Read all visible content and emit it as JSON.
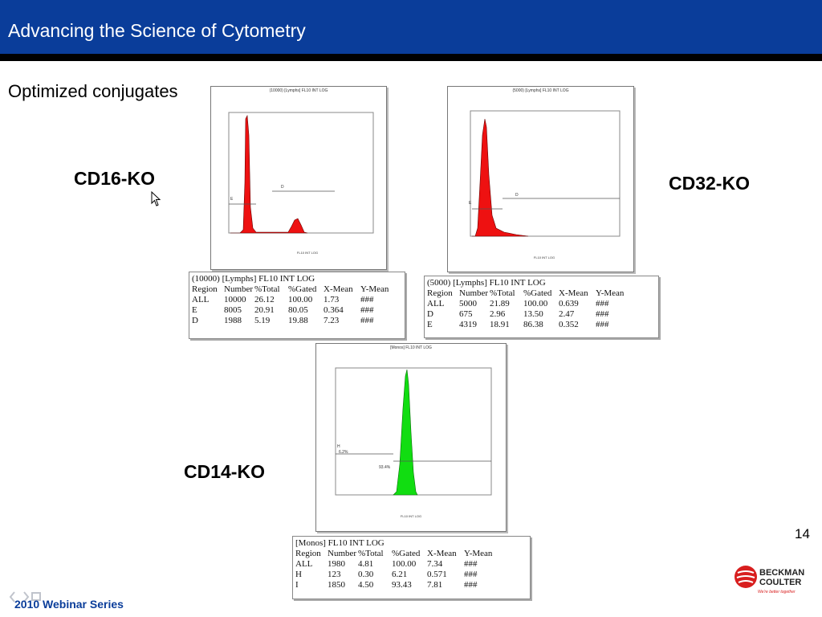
{
  "header": {
    "title": "Advancing the Science of Cytometry"
  },
  "slide": {
    "subtitle": "Optimized conjugates",
    "page_number": "14",
    "footer": "2010 Webinar Series",
    "logo": {
      "line1": "BECKMAN",
      "line2": "COULTER",
      "tagline": "We're better together"
    }
  },
  "panels": [
    {
      "label": "CD16-KO",
      "plot_title": "(10000) [Lymphs] FL10 INT LOG",
      "x_label": "FL10 INT LOG",
      "fill_color": "#ee1111",
      "region_labels": [
        "E",
        "D"
      ],
      "stats_title": "(10000) [Lymphs] FL10 INT LOG",
      "stats_headers": [
        "Region",
        "Number",
        "%Total",
        "%Gated",
        "X-Mean",
        "Y-Mean"
      ],
      "stats_rows": [
        [
          "ALL",
          "10000",
          "26.12",
          "100.00",
          "1.73",
          "###"
        ],
        [
          "E",
          "8005",
          "20.91",
          "80.05",
          "0.364",
          "###"
        ],
        [
          "D",
          "1988",
          "5.19",
          "19.88",
          "7.23",
          "###"
        ]
      ]
    },
    {
      "label": "CD32-KO",
      "plot_title": "(5000) [Lymphs] FL10 INT LOG",
      "x_label": "FL10 INT LOG",
      "fill_color": "#ee1111",
      "region_labels": [
        "E",
        "D"
      ],
      "stats_title": "(5000) [Lymphs] FL10 INT LOG",
      "stats_headers": [
        "Region",
        "Number",
        "%Total",
        "%Gated",
        "X-Mean",
        "Y-Mean"
      ],
      "stats_rows": [
        [
          "ALL",
          "5000",
          "21.89",
          "100.00",
          "0.639",
          "###"
        ],
        [
          "D",
          "675",
          "2.96",
          "13.50",
          "2.47",
          "###"
        ],
        [
          "E",
          "4319",
          "18.91",
          "86.38",
          "0.352",
          "###"
        ]
      ]
    },
    {
      "label": "CD14-KO",
      "plot_title": "[Monos] FL10 INT LOG",
      "x_label": "FL10 INT LOG",
      "fill_color": "#11dd11",
      "region_labels": [
        "H",
        "I"
      ],
      "gate_annotations": [
        "6.2%",
        "93.4%"
      ],
      "stats_title": "[Monos] FL10 INT LOG",
      "stats_headers": [
        "Region",
        "Number",
        "%Total",
        "%Gated",
        "X-Mean",
        "Y-Mean"
      ],
      "stats_rows": [
        [
          "ALL",
          "1980",
          "4.81",
          "100.00",
          "7.34",
          "###"
        ],
        [
          "H",
          "123",
          "0.30",
          "6.21",
          "0.571",
          "###"
        ],
        [
          "I",
          "1850",
          "4.50",
          "93.43",
          "7.81",
          "###"
        ]
      ]
    }
  ]
}
